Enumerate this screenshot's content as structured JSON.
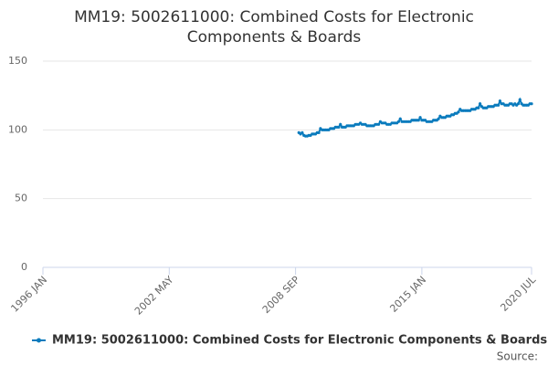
{
  "chart_data": {
    "type": "line",
    "title": "MM19: 5002611000: Combined Costs for Electronic Components & Boards",
    "source": "Source:",
    "xlim": [
      "1996 JAN",
      "2020 JUL"
    ],
    "xticks": [
      "1996 JAN",
      "2002 MAY",
      "2008 SEP",
      "2015 JAN",
      "2020 JUL"
    ],
    "ylim": [
      0,
      150
    ],
    "yticks": [
      0,
      50,
      100,
      150
    ],
    "grid": true,
    "legend": "bottom",
    "x": [
      "2008 NOV",
      "2008 DEC",
      "2009 JAN",
      "2009 FEB",
      "2009 MAR",
      "2009 APR",
      "2009 MAY",
      "2009 JUN",
      "2009 JUL",
      "2009 AUG",
      "2009 SEP",
      "2009 OCT",
      "2009 NOV",
      "2009 DEC",
      "2010 JAN",
      "2010 FEB",
      "2010 MAR",
      "2010 APR",
      "2010 MAY",
      "2010 JUN",
      "2010 JUL",
      "2010 AUG",
      "2010 SEP",
      "2010 OCT",
      "2010 NOV",
      "2010 DEC",
      "2011 JAN",
      "2011 FEB",
      "2011 MAR",
      "2011 APR",
      "2011 MAY",
      "2011 JUN",
      "2011 JUL",
      "2011 AUG",
      "2011 SEP",
      "2011 OCT",
      "2011 NOV",
      "2011 DEC",
      "2012 JAN",
      "2012 FEB",
      "2012 MAR",
      "2012 APR",
      "2012 MAY",
      "2012 JUN",
      "2012 JUL",
      "2012 AUG",
      "2012 SEP",
      "2012 OCT",
      "2012 NOV",
      "2012 DEC",
      "2013 JAN",
      "2013 FEB",
      "2013 MAR",
      "2013 APR",
      "2013 MAY",
      "2013 JUN",
      "2013 JUL",
      "2013 AUG",
      "2013 SEP",
      "2013 OCT",
      "2013 NOV",
      "2013 DEC",
      "2014 JAN",
      "2014 FEB",
      "2014 MAR",
      "2014 APR",
      "2014 MAY",
      "2014 JUN",
      "2014 JUL",
      "2014 AUG",
      "2014 SEP",
      "2014 OCT",
      "2014 NOV",
      "2014 DEC",
      "2015 JAN",
      "2015 FEB",
      "2015 MAR",
      "2015 APR",
      "2015 MAY",
      "2015 JUN",
      "2015 JUL",
      "2015 AUG",
      "2015 SEP",
      "2015 OCT",
      "2015 NOV",
      "2015 DEC",
      "2016 JAN",
      "2016 FEB",
      "2016 MAR",
      "2016 APR",
      "2016 MAY",
      "2016 JUN",
      "2016 JUL",
      "2016 AUG",
      "2016 SEP",
      "2016 OCT",
      "2016 NOV",
      "2016 DEC",
      "2017 JAN",
      "2017 FEB",
      "2017 MAR",
      "2017 APR",
      "2017 MAY",
      "2017 JUN",
      "2017 JUL",
      "2017 AUG",
      "2017 SEP",
      "2017 OCT",
      "2017 NOV",
      "2017 DEC",
      "2018 JAN",
      "2018 FEB",
      "2018 MAR",
      "2018 APR",
      "2018 MAY",
      "2018 JUN",
      "2018 JUL",
      "2018 AUG",
      "2018 SEP",
      "2018 OCT",
      "2018 NOV",
      "2018 DEC",
      "2019 JAN",
      "2019 FEB",
      "2019 MAR",
      "2019 APR",
      "2019 MAY",
      "2019 JUN",
      "2019 JUL",
      "2019 AUG",
      "2019 SEP",
      "2019 OCT",
      "2019 NOV",
      "2019 DEC",
      "2020 JAN",
      "2020 FEB",
      "2020 MAR",
      "2020 APR",
      "2020 MAY",
      "2020 JUN",
      "2020 JUL"
    ],
    "series": [
      {
        "name": "MM19: 5002611000: Combined Costs for Electronic Components & Boards",
        "color": "#0a7bbd",
        "values": [
          98,
          97,
          98,
          96,
          95.5,
          95.5,
          96,
          96,
          97,
          97,
          97,
          98,
          98,
          101,
          100,
          100,
          100,
          100,
          100,
          101,
          101,
          101,
          102,
          102,
          102,
          104,
          102,
          102,
          102,
          103,
          103,
          103,
          103,
          103,
          104,
          104,
          104,
          105,
          104,
          104,
          104,
          103,
          103,
          103,
          103,
          103,
          104,
          104,
          104,
          106,
          105,
          105,
          105,
          104,
          104,
          104,
          105,
          105,
          105,
          105,
          106,
          108,
          106,
          106,
          106,
          106,
          106,
          106,
          107,
          107,
          107,
          107,
          107,
          109,
          107,
          107,
          107,
          106,
          106,
          106,
          106,
          107,
          107,
          107,
          108,
          110,
          109,
          109,
          109,
          110,
          110,
          110,
          111,
          111,
          112,
          112,
          113,
          115,
          114,
          114,
          114,
          114,
          114,
          114,
          115,
          115,
          115,
          116,
          116,
          119,
          117,
          116,
          116,
          116,
          117,
          117,
          117,
          117,
          118,
          118,
          118,
          121,
          119,
          119,
          118,
          118,
          118,
          119,
          119,
          118,
          119,
          118,
          119,
          122,
          119,
          118,
          118,
          118,
          118,
          119,
          119
        ]
      }
    ]
  }
}
